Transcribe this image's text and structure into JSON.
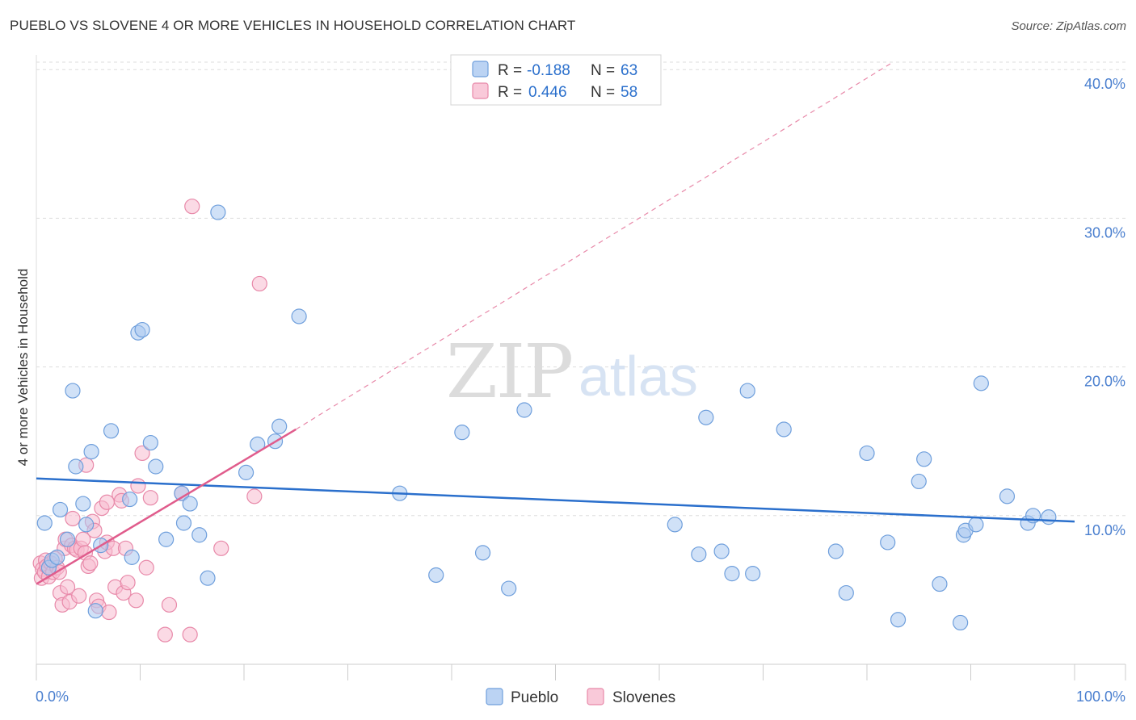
{
  "header": {
    "title": "PUEBLO VS SLOVENE 4 OR MORE VEHICLES IN HOUSEHOLD CORRELATION CHART",
    "source": "Source: ZipAtlas.com"
  },
  "watermark": {
    "zip": "ZIP",
    "atlas": "atlas"
  },
  "colors": {
    "pueblo_fill": "#aac8f0",
    "pueblo_stroke": "#6f9fdc",
    "pueblo_line": "#2a6fcc",
    "slovene_fill": "#f7bcd0",
    "slovene_stroke": "#e889a9",
    "slovene_line": "#e05c8c",
    "grid": "#dddddd",
    "tick_label": "#4a7fcf"
  },
  "chart_data": {
    "type": "scatter",
    "title": "PUEBLO VS SLOVENE 4 OR MORE VEHICLES IN HOUSEHOLD CORRELATION CHART",
    "xlabel": "",
    "ylabel": "4 or more Vehicles in Household",
    "xlim": [
      0,
      100
    ],
    "ylim": [
      0,
      40.5
    ],
    "x_tick_labels": [
      "0.0%",
      "100.0%"
    ],
    "y_ticks": [
      10,
      20,
      30,
      40
    ],
    "y_tick_labels": [
      "10.0%",
      "20.0%",
      "30.0%",
      "40.0%"
    ],
    "grid": true,
    "legend_top": [
      {
        "series": "Pueblo",
        "r_label": "R =",
        "r_value": "-0.188",
        "n_label": "N =",
        "n_value": "63"
      },
      {
        "series": "Slovenes",
        "r_label": "R =",
        "r_value": "0.446",
        "n_label": "N =",
        "n_value": "58"
      }
    ],
    "legend_bottom": [
      "Pueblo",
      "Slovenes"
    ],
    "series": [
      {
        "name": "Pueblo",
        "trend": {
          "x0": 0,
          "y0": 12.5,
          "x1": 100,
          "y1": 9.6
        },
        "points": [
          [
            0.8,
            9.5
          ],
          [
            1.2,
            6.5
          ],
          [
            1.5,
            7.0
          ],
          [
            2.0,
            7.2
          ],
          [
            2.3,
            10.4
          ],
          [
            3.0,
            8.4
          ],
          [
            3.5,
            18.4
          ],
          [
            3.8,
            13.3
          ],
          [
            4.5,
            10.8
          ],
          [
            4.8,
            9.4
          ],
          [
            5.3,
            14.3
          ],
          [
            5.7,
            3.6
          ],
          [
            6.2,
            8.0
          ],
          [
            7.2,
            15.7
          ],
          [
            9.0,
            11.1
          ],
          [
            9.2,
            7.2
          ],
          [
            9.8,
            22.3
          ],
          [
            10.2,
            22.5
          ],
          [
            11.0,
            14.9
          ],
          [
            11.5,
            13.3
          ],
          [
            12.5,
            8.4
          ],
          [
            14.0,
            11.5
          ],
          [
            14.2,
            9.5
          ],
          [
            14.8,
            10.8
          ],
          [
            15.7,
            8.7
          ],
          [
            16.5,
            5.8
          ],
          [
            17.5,
            30.4
          ],
          [
            20.2,
            12.9
          ],
          [
            21.3,
            14.8
          ],
          [
            23.0,
            15.0
          ],
          [
            23.4,
            16.0
          ],
          [
            25.3,
            23.4
          ],
          [
            35.0,
            11.5
          ],
          [
            38.5,
            6.0
          ],
          [
            41.0,
            15.6
          ],
          [
            43.0,
            7.5
          ],
          [
            45.5,
            5.1
          ],
          [
            47.0,
            17.1
          ],
          [
            61.5,
            9.4
          ],
          [
            63.8,
            7.4
          ],
          [
            64.5,
            16.6
          ],
          [
            66.0,
            7.6
          ],
          [
            67.0,
            6.1
          ],
          [
            68.5,
            18.4
          ],
          [
            69.0,
            6.1
          ],
          [
            72.0,
            15.8
          ],
          [
            77.0,
            7.6
          ],
          [
            78.0,
            4.8
          ],
          [
            80.0,
            14.2
          ],
          [
            82.0,
            8.2
          ],
          [
            83.0,
            3.0
          ],
          [
            85.0,
            12.3
          ],
          [
            85.5,
            13.8
          ],
          [
            87.0,
            5.4
          ],
          [
            89.0,
            2.8
          ],
          [
            89.3,
            8.7
          ],
          [
            89.5,
            9.0
          ],
          [
            90.5,
            9.4
          ],
          [
            91.0,
            18.9
          ],
          [
            93.5,
            11.3
          ],
          [
            95.5,
            9.5
          ],
          [
            96.0,
            10.0
          ],
          [
            97.5,
            9.9
          ]
        ]
      },
      {
        "name": "Slovenes",
        "trend": {
          "x0": 0,
          "y0": 5.4,
          "x1": 25.0,
          "y1": 15.8
        },
        "trend_dashed": {
          "x0": 25.0,
          "y0": 15.8,
          "x1": 82.5,
          "y1": 40.5
        },
        "points": [
          [
            0.4,
            6.8
          ],
          [
            0.5,
            5.8
          ],
          [
            0.6,
            6.4
          ],
          [
            0.8,
            6.2
          ],
          [
            0.9,
            7.0
          ],
          [
            1.0,
            6.6
          ],
          [
            1.2,
            5.9
          ],
          [
            1.4,
            6.8
          ],
          [
            1.6,
            6.2
          ],
          [
            1.8,
            7.1
          ],
          [
            2.0,
            6.5
          ],
          [
            2.2,
            6.2
          ],
          [
            2.3,
            4.8
          ],
          [
            2.5,
            4.0
          ],
          [
            2.7,
            7.8
          ],
          [
            2.8,
            8.4
          ],
          [
            3.0,
            5.2
          ],
          [
            3.2,
            4.2
          ],
          [
            3.4,
            8.0
          ],
          [
            3.5,
            9.8
          ],
          [
            3.7,
            7.8
          ],
          [
            3.9,
            7.7
          ],
          [
            4.1,
            4.6
          ],
          [
            4.3,
            7.8
          ],
          [
            4.5,
            8.4
          ],
          [
            4.7,
            7.5
          ],
          [
            4.8,
            13.4
          ],
          [
            5.0,
            6.6
          ],
          [
            5.2,
            6.8
          ],
          [
            5.4,
            9.6
          ],
          [
            5.6,
            9.0
          ],
          [
            5.8,
            4.3
          ],
          [
            6.0,
            3.9
          ],
          [
            6.3,
            10.5
          ],
          [
            6.6,
            7.6
          ],
          [
            6.8,
            8.2
          ],
          [
            7.0,
            3.5
          ],
          [
            7.4,
            7.8
          ],
          [
            7.6,
            5.2
          ],
          [
            8.0,
            11.4
          ],
          [
            8.2,
            11.0
          ],
          [
            8.4,
            4.8
          ],
          [
            8.6,
            7.8
          ],
          [
            8.8,
            5.5
          ],
          [
            9.6,
            4.3
          ],
          [
            9.8,
            12.0
          ],
          [
            10.2,
            14.2
          ],
          [
            10.6,
            6.5
          ],
          [
            11.0,
            11.2
          ],
          [
            12.4,
            2.0
          ],
          [
            12.8,
            4.0
          ],
          [
            14.0,
            11.5
          ],
          [
            14.8,
            2.0
          ],
          [
            15.0,
            30.8
          ],
          [
            17.8,
            7.8
          ],
          [
            21.0,
            11.3
          ],
          [
            21.5,
            25.6
          ],
          [
            6.8,
            10.9
          ]
        ]
      }
    ]
  }
}
